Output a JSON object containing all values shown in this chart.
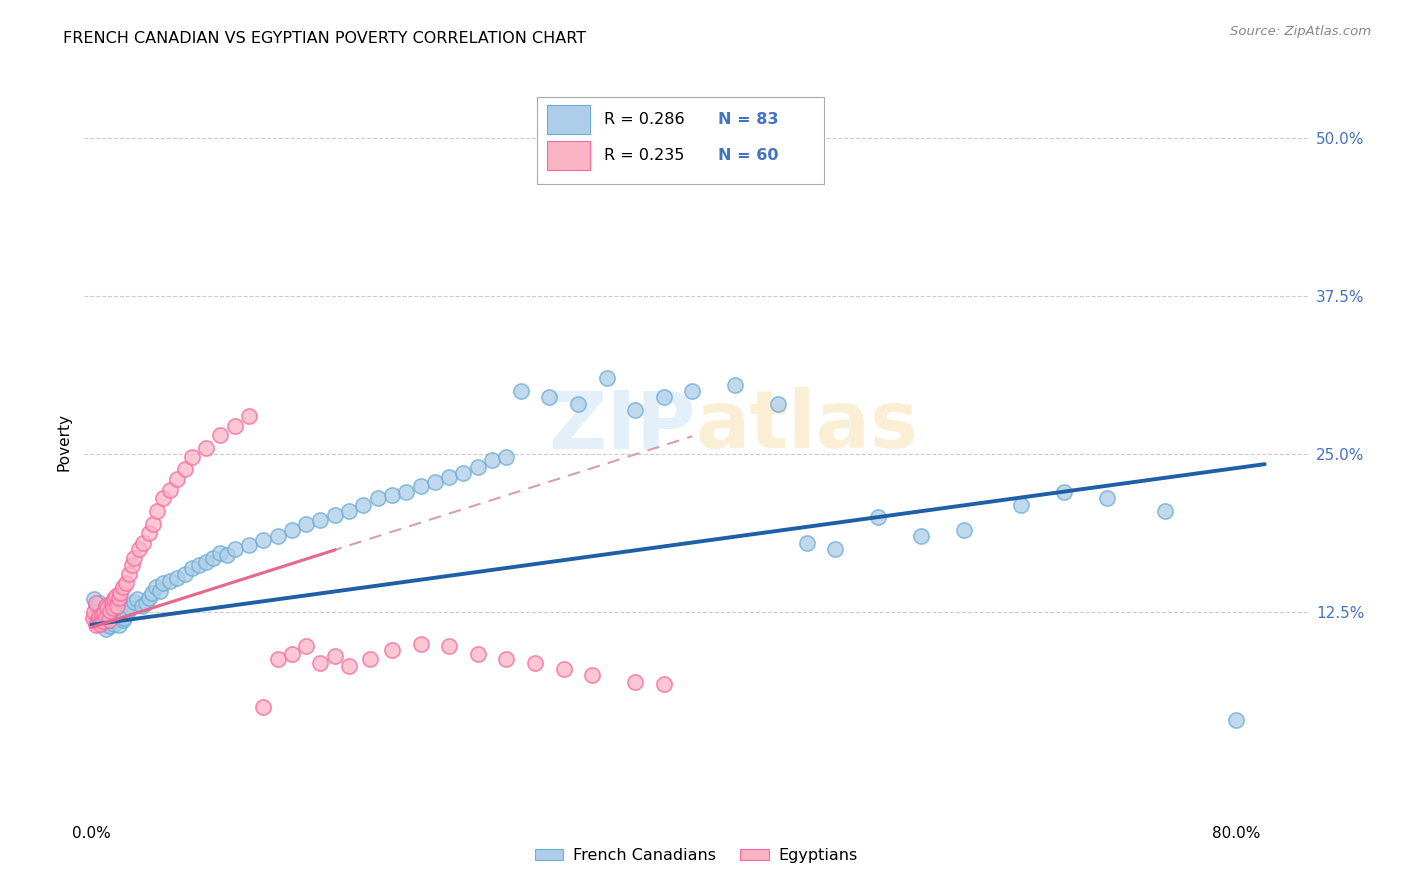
{
  "title": "FRENCH CANADIAN VS EGYPTIAN POVERTY CORRELATION CHART",
  "source": "Source: ZipAtlas.com",
  "ylabel": "Poverty",
  "ytick_labels": [
    "12.5%",
    "25.0%",
    "37.5%",
    "50.0%"
  ],
  "ytick_values": [
    0.125,
    0.25,
    0.375,
    0.5
  ],
  "xlim": [
    -0.005,
    0.85
  ],
  "ylim": [
    -0.04,
    0.56
  ],
  "watermark": "ZIPatlas",
  "legend_r1": "R = 0.286",
  "legend_n1": "N = 83",
  "legend_r2": "R = 0.235",
  "legend_n2": "N = 60",
  "blue_fill": "#aecde8",
  "blue_edge": "#6baed6",
  "pink_fill": "#fbb4c4",
  "pink_edge": "#f768a1",
  "blue_line_color": "#1f5fa6",
  "pink_line_color": "#e8678a",
  "dashed_line_color": "#d4a0b0",
  "fc_x": [
    0.002,
    0.003,
    0.004,
    0.005,
    0.006,
    0.007,
    0.008,
    0.009,
    0.01,
    0.01,
    0.011,
    0.012,
    0.013,
    0.014,
    0.015,
    0.016,
    0.017,
    0.018,
    0.019,
    0.02,
    0.02,
    0.021,
    0.022,
    0.023,
    0.025,
    0.027,
    0.03,
    0.032,
    0.035,
    0.038,
    0.04,
    0.042,
    0.045,
    0.048,
    0.05,
    0.055,
    0.06,
    0.065,
    0.07,
    0.075,
    0.08,
    0.085,
    0.09,
    0.095,
    0.1,
    0.11,
    0.12,
    0.13,
    0.14,
    0.15,
    0.16,
    0.17,
    0.18,
    0.19,
    0.2,
    0.21,
    0.22,
    0.23,
    0.24,
    0.25,
    0.26,
    0.27,
    0.28,
    0.29,
    0.3,
    0.32,
    0.34,
    0.36,
    0.38,
    0.4,
    0.42,
    0.45,
    0.48,
    0.5,
    0.52,
    0.55,
    0.58,
    0.61,
    0.65,
    0.68,
    0.71,
    0.75,
    0.8
  ],
  "fc_y": [
    0.135,
    0.13,
    0.128,
    0.132,
    0.125,
    0.122,
    0.12,
    0.118,
    0.115,
    0.112,
    0.117,
    0.119,
    0.114,
    0.118,
    0.122,
    0.116,
    0.119,
    0.123,
    0.115,
    0.13,
    0.128,
    0.125,
    0.119,
    0.12,
    0.124,
    0.128,
    0.133,
    0.135,
    0.13,
    0.132,
    0.136,
    0.14,
    0.145,
    0.142,
    0.148,
    0.15,
    0.152,
    0.155,
    0.16,
    0.162,
    0.165,
    0.168,
    0.172,
    0.17,
    0.175,
    0.178,
    0.182,
    0.185,
    0.19,
    0.195,
    0.198,
    0.202,
    0.205,
    0.21,
    0.215,
    0.218,
    0.22,
    0.225,
    0.228,
    0.232,
    0.235,
    0.24,
    0.245,
    0.248,
    0.3,
    0.295,
    0.29,
    0.31,
    0.285,
    0.295,
    0.3,
    0.305,
    0.29,
    0.18,
    0.175,
    0.2,
    0.185,
    0.19,
    0.21,
    0.22,
    0.215,
    0.205,
    0.04
  ],
  "eg_x": [
    0.001,
    0.002,
    0.003,
    0.003,
    0.004,
    0.005,
    0.005,
    0.006,
    0.007,
    0.008,
    0.009,
    0.01,
    0.01,
    0.011,
    0.012,
    0.013,
    0.014,
    0.015,
    0.016,
    0.017,
    0.018,
    0.019,
    0.02,
    0.022,
    0.024,
    0.026,
    0.028,
    0.03,
    0.033,
    0.036,
    0.04,
    0.043,
    0.046,
    0.05,
    0.055,
    0.06,
    0.065,
    0.07,
    0.08,
    0.09,
    0.1,
    0.11,
    0.12,
    0.13,
    0.14,
    0.15,
    0.16,
    0.17,
    0.18,
    0.195,
    0.21,
    0.23,
    0.25,
    0.27,
    0.29,
    0.31,
    0.33,
    0.35,
    0.38,
    0.4
  ],
  "eg_y": [
    0.12,
    0.125,
    0.115,
    0.132,
    0.118,
    0.119,
    0.122,
    0.116,
    0.123,
    0.118,
    0.125,
    0.121,
    0.13,
    0.128,
    0.119,
    0.126,
    0.133,
    0.128,
    0.135,
    0.138,
    0.13,
    0.136,
    0.14,
    0.145,
    0.148,
    0.155,
    0.162,
    0.168,
    0.175,
    0.18,
    0.188,
    0.195,
    0.205,
    0.215,
    0.222,
    0.23,
    0.238,
    0.248,
    0.255,
    0.265,
    0.272,
    0.28,
    0.05,
    0.088,
    0.092,
    0.098,
    0.085,
    0.09,
    0.082,
    0.088,
    0.095,
    0.1,
    0.098,
    0.092,
    0.088,
    0.085,
    0.08,
    0.075,
    0.07,
    0.068
  ],
  "eg_trendline_x0": 0.0,
  "eg_trendline_x1": 0.42,
  "fc_trendline_x0": 0.0,
  "fc_trendline_x1": 0.82,
  "eg_intercept": 0.113,
  "eg_slope": 0.36,
  "fc_intercept": 0.115,
  "fc_slope": 0.155
}
